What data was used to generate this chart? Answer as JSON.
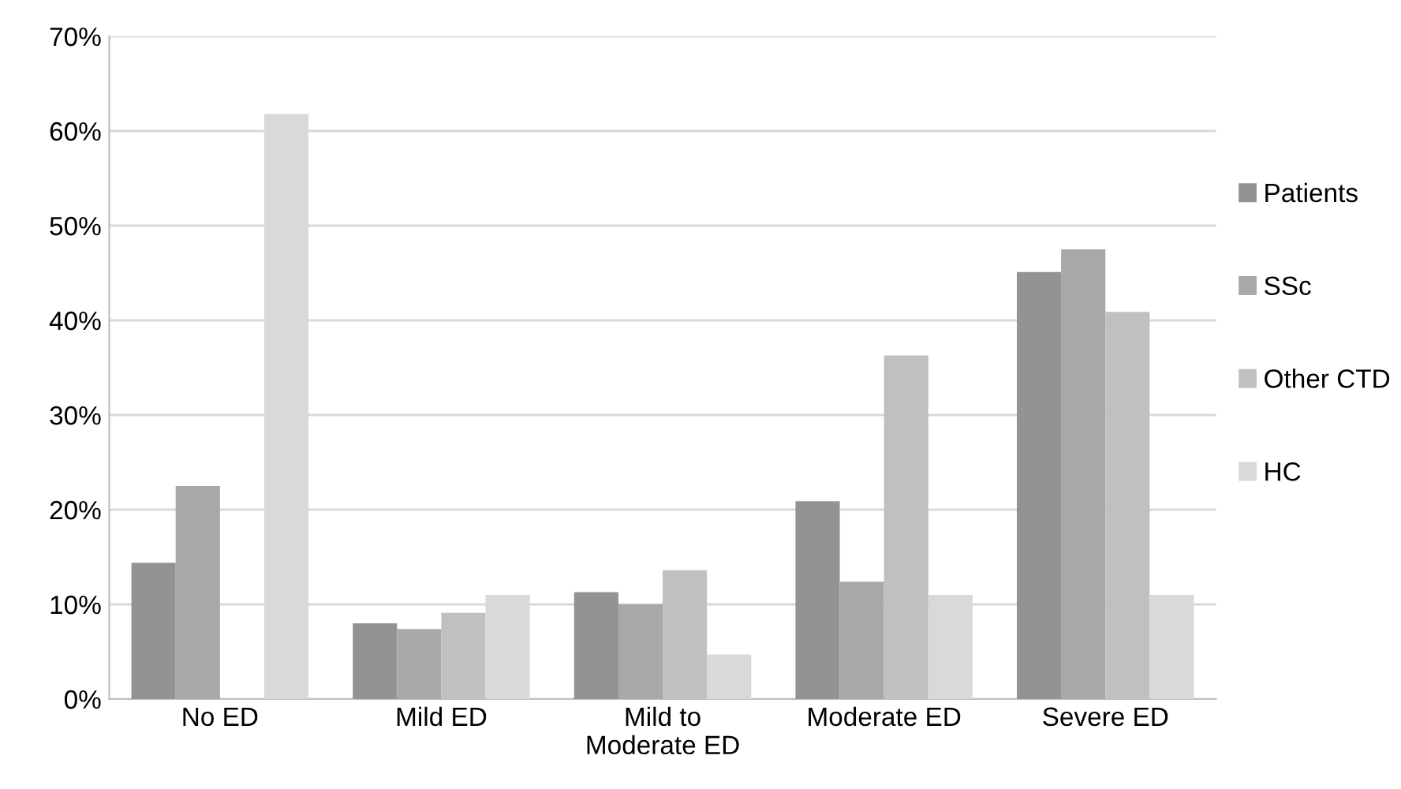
{
  "chart_data": {
    "type": "bar",
    "categories": [
      "No ED",
      "Mild ED",
      "Mild to\nModerate ED",
      "Moderate ED",
      "Severe ED"
    ],
    "series": [
      {
        "name": "Patients",
        "color": "#939393",
        "values": [
          14.4,
          8.0,
          11.3,
          20.9,
          45.1
        ]
      },
      {
        "name": "SSc",
        "color": "#a8a8a8",
        "values": [
          22.5,
          7.4,
          10.0,
          12.4,
          47.5
        ]
      },
      {
        "name": "Other CTD",
        "color": "#c0c0c0",
        "values": [
          0,
          9.1,
          13.6,
          36.3,
          40.9
        ]
      },
      {
        "name": "HC",
        "color": "#d9d9d9",
        "values": [
          61.8,
          11.0,
          4.7,
          11.0,
          11.0
        ]
      }
    ],
    "ylim": [
      0,
      70
    ],
    "yticks": [
      {
        "value": 0,
        "label": "0%"
      },
      {
        "value": 10,
        "label": "10%"
      },
      {
        "value": 20,
        "label": "20%"
      },
      {
        "value": 30,
        "label": "30%"
      },
      {
        "value": 40,
        "label": "40%"
      },
      {
        "value": 50,
        "label": "50%"
      },
      {
        "value": 60,
        "label": "60%"
      },
      {
        "value": 70,
        "label": "70%"
      }
    ],
    "grid": "y",
    "legend": "right"
  }
}
